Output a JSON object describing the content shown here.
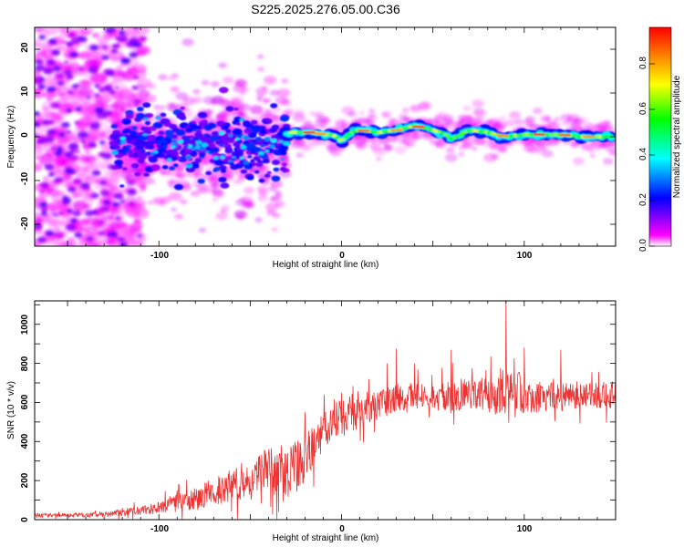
{
  "title": "S225.2025.276.05.00.C36",
  "chart_data": [
    {
      "type": "heatmap",
      "xlabel": "Height of straight line (km)",
      "ylabel": "Frequency (Hz)",
      "xlim": [
        -168,
        150
      ],
      "ylim": [
        -25,
        25
      ],
      "x_ticks": [
        "-100",
        "0",
        "100"
      ],
      "y_ticks": [
        "-20",
        "-10",
        "0",
        "10",
        "20"
      ],
      "colorbar": {
        "label": "Normalized spectral amplitude",
        "range": [
          0.0,
          0.96
        ],
        "ticks": [
          "0.0",
          "0.2",
          "0.4",
          "0.6",
          "0.8"
        ],
        "colormap": [
          "#ffffff",
          "#ff00ff",
          "#0000ff",
          "#00ffff",
          "#00ff00",
          "#ffff00",
          "#ff8000",
          "#ff0000"
        ]
      },
      "ridge": {
        "x": [
          -35,
          -28,
          -22,
          -15,
          -10,
          -5,
          0,
          5,
          10,
          20,
          30,
          40,
          50,
          55,
          60,
          70,
          80,
          90,
          100,
          110,
          120,
          130,
          140,
          148
        ],
        "y": [
          0,
          1,
          1,
          1,
          0.5,
          0.5,
          -1,
          1,
          1.5,
          1,
          1.5,
          2.5,
          1.5,
          1,
          -0.5,
          1.5,
          1,
          0,
          0.5,
          0.5,
          0.5,
          0,
          0,
          0
        ]
      }
    },
    {
      "type": "line",
      "xlabel": "Height of straight line (km)",
      "ylabel": "SNR (10 * v/v)",
      "xlim": [
        -168,
        150
      ],
      "ylim": [
        0,
        1120
      ],
      "x_ticks": [
        "-100",
        "0",
        "100"
      ],
      "y_ticks": [
        "0",
        "200",
        "400",
        "600",
        "800",
        "1000"
      ],
      "series": [
        {
          "name": "SNR",
          "color": "#ee3333",
          "envelope_x": [
            -168,
            -130,
            -100,
            -80,
            -60,
            -40,
            -30,
            -20,
            -10,
            0,
            10,
            20,
            30,
            40,
            50,
            60,
            70,
            80,
            90,
            100,
            110,
            120,
            130,
            140,
            150
          ],
          "envelope_mean": [
            22,
            25,
            60,
            110,
            180,
            260,
            220,
            310,
            450,
            520,
            560,
            590,
            620,
            640,
            630,
            620,
            650,
            640,
            650,
            640,
            630,
            630,
            640,
            640,
            640
          ],
          "envelope_spread": [
            10,
            12,
            30,
            60,
            90,
            110,
            150,
            130,
            110,
            100,
            90,
            80,
            75,
            70,
            60,
            90,
            80,
            85,
            150,
            100,
            80,
            70,
            70,
            70,
            70
          ],
          "peaks": [
            [
              -120,
              60
            ],
            [
              -90,
              150
            ],
            [
              -55,
              240
            ],
            [
              -40,
              340
            ],
            [
              -33,
              380
            ],
            [
              -20,
              550
            ],
            [
              -10,
              520
            ],
            [
              0,
              650
            ],
            [
              15,
              720
            ],
            [
              25,
              800
            ],
            [
              30,
              875
            ],
            [
              40,
              800
            ],
            [
              60,
              870
            ],
            [
              90,
              1120
            ],
            [
              100,
              880
            ],
            [
              120,
              870
            ]
          ]
        }
      ]
    }
  ]
}
